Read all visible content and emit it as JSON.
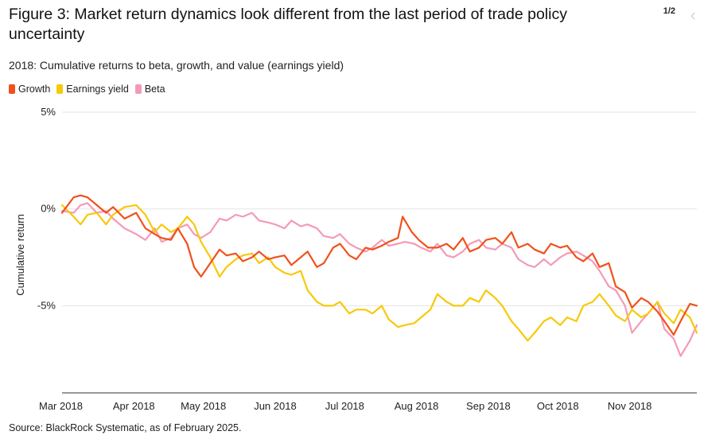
{
  "header": {
    "title": "Figure 3: Market return dynamics look different from the last period of trade policy uncertainty",
    "pager": "1/2",
    "prev_icon": "chevron-left-icon"
  },
  "footer": {
    "source": "Source: BlackRock Systematic, as of February 2025."
  },
  "colors": {
    "Growth": "#f0511c",
    "Earnings yield": "#f7c90a",
    "Beta": "#f49ab7",
    "grid": "#e6e6e6"
  },
  "chart_data": {
    "type": "line",
    "title": "2018: Cumulative returns to beta, growth, and value (earnings yield)",
    "xlabel": "",
    "ylabel": "Cumulative return",
    "ylim": [
      -9.5,
      5
    ],
    "yticks": [
      5,
      0,
      -5
    ],
    "ytick_labels": [
      "5%",
      "0%",
      "-5%"
    ],
    "xticks": [
      "Mar 2018",
      "Apr 2018",
      "May 2018",
      "Jun 2018",
      "Jul 2018",
      "Aug 2018",
      "Sep 2018",
      "Oct 2018",
      "Nov 2018"
    ],
    "xlim": [
      "2018-03-01",
      "2018-11-30"
    ],
    "grid": true,
    "legend_position": "top-left",
    "series": [
      {
        "name": "Growth",
        "x": [
          "2018-03-01",
          "2018-03-06",
          "2018-03-09",
          "2018-03-12",
          "2018-03-16",
          "2018-03-20",
          "2018-03-23",
          "2018-03-28",
          "2018-04-02",
          "2018-04-06",
          "2018-04-10",
          "2018-04-13",
          "2018-04-17",
          "2018-04-20",
          "2018-04-24",
          "2018-04-27",
          "2018-04-30",
          "2018-05-04",
          "2018-05-08",
          "2018-05-11",
          "2018-05-15",
          "2018-05-18",
          "2018-05-22",
          "2018-05-25",
          "2018-05-29",
          "2018-06-01",
          "2018-06-05",
          "2018-06-08",
          "2018-06-12",
          "2018-06-15",
          "2018-06-19",
          "2018-06-22",
          "2018-06-26",
          "2018-06-29",
          "2018-07-03",
          "2018-07-06",
          "2018-07-10",
          "2018-07-13",
          "2018-07-17",
          "2018-07-20",
          "2018-07-24",
          "2018-07-26",
          "2018-07-30",
          "2018-08-02",
          "2018-08-06",
          "2018-08-10",
          "2018-08-14",
          "2018-08-17",
          "2018-08-21",
          "2018-08-24",
          "2018-08-28",
          "2018-08-31",
          "2018-09-04",
          "2018-09-07",
          "2018-09-11",
          "2018-09-14",
          "2018-09-18",
          "2018-09-21",
          "2018-09-25",
          "2018-09-28",
          "2018-10-02",
          "2018-10-05",
          "2018-10-09",
          "2018-10-12",
          "2018-10-16",
          "2018-10-19",
          "2018-10-23",
          "2018-10-26",
          "2018-10-30",
          "2018-11-02",
          "2018-11-06",
          "2018-11-09",
          "2018-11-13",
          "2018-11-16",
          "2018-11-20",
          "2018-11-23",
          "2018-11-27",
          "2018-11-30"
        ],
        "values": [
          -0.2,
          0.6,
          0.7,
          0.6,
          0.2,
          -0.2,
          0.1,
          -0.5,
          -0.2,
          -1.0,
          -1.3,
          -1.5,
          -1.6,
          -1.0,
          -1.8,
          -3.0,
          -3.5,
          -2.8,
          -2.1,
          -2.4,
          -2.3,
          -2.7,
          -2.5,
          -2.2,
          -2.6,
          -2.5,
          -2.4,
          -2.9,
          -2.5,
          -2.2,
          -3.0,
          -2.8,
          -2.0,
          -1.8,
          -2.4,
          -2.6,
          -2.0,
          -2.1,
          -1.9,
          -1.7,
          -1.5,
          -0.4,
          -1.2,
          -1.6,
          -2.0,
          -2.0,
          -1.8,
          -2.1,
          -1.5,
          -2.2,
          -2.0,
          -1.6,
          -1.5,
          -1.8,
          -1.2,
          -2.0,
          -1.8,
          -2.1,
          -2.3,
          -1.8,
          -2.0,
          -1.9,
          -2.5,
          -2.7,
          -2.3,
          -3.0,
          -2.8,
          -4.0,
          -4.3,
          -5.1,
          -4.6,
          -4.8,
          -5.3,
          -5.8,
          -6.5,
          -5.8,
          -4.9,
          -5.0
        ]
      },
      {
        "name": "Earnings yield",
        "x": [
          "2018-03-01",
          "2018-03-06",
          "2018-03-09",
          "2018-03-12",
          "2018-03-16",
          "2018-03-20",
          "2018-03-23",
          "2018-03-28",
          "2018-04-02",
          "2018-04-06",
          "2018-04-10",
          "2018-04-13",
          "2018-04-17",
          "2018-04-20",
          "2018-04-24",
          "2018-04-27",
          "2018-04-30",
          "2018-05-04",
          "2018-05-08",
          "2018-05-11",
          "2018-05-15",
          "2018-05-18",
          "2018-05-22",
          "2018-05-25",
          "2018-05-29",
          "2018-06-01",
          "2018-06-05",
          "2018-06-08",
          "2018-06-12",
          "2018-06-15",
          "2018-06-19",
          "2018-06-22",
          "2018-06-26",
          "2018-06-29",
          "2018-07-03",
          "2018-07-06",
          "2018-07-10",
          "2018-07-13",
          "2018-07-17",
          "2018-07-20",
          "2018-07-24",
          "2018-07-27",
          "2018-07-31",
          "2018-08-03",
          "2018-08-07",
          "2018-08-10",
          "2018-08-14",
          "2018-08-17",
          "2018-08-21",
          "2018-08-24",
          "2018-08-28",
          "2018-08-31",
          "2018-09-04",
          "2018-09-07",
          "2018-09-11",
          "2018-09-14",
          "2018-09-18",
          "2018-09-21",
          "2018-09-25",
          "2018-09-28",
          "2018-10-02",
          "2018-10-05",
          "2018-10-09",
          "2018-10-12",
          "2018-10-16",
          "2018-10-19",
          "2018-10-23",
          "2018-10-26",
          "2018-10-30",
          "2018-11-02",
          "2018-11-06",
          "2018-11-09",
          "2018-11-13",
          "2018-11-16",
          "2018-11-20",
          "2018-11-23",
          "2018-11-27",
          "2018-11-30"
        ],
        "values": [
          0.2,
          -0.4,
          -0.8,
          -0.3,
          -0.2,
          -0.8,
          -0.3,
          0.1,
          0.2,
          -0.3,
          -1.2,
          -0.8,
          -1.2,
          -1.0,
          -0.4,
          -0.8,
          -1.7,
          -2.5,
          -3.5,
          -3.0,
          -2.6,
          -2.4,
          -2.3,
          -2.8,
          -2.5,
          -3.0,
          -3.3,
          -3.4,
          -3.2,
          -4.2,
          -4.8,
          -5.0,
          -5.0,
          -4.8,
          -5.4,
          -5.2,
          -5.2,
          -5.4,
          -5.0,
          -5.7,
          -6.1,
          -6.0,
          -5.9,
          -5.6,
          -5.2,
          -4.4,
          -4.8,
          -5.0,
          -5.0,
          -4.6,
          -4.8,
          -4.2,
          -4.6,
          -5.0,
          -5.8,
          -6.2,
          -6.8,
          -6.4,
          -5.8,
          -5.6,
          -6.0,
          -5.6,
          -5.8,
          -5.0,
          -4.8,
          -4.4,
          -5.0,
          -5.5,
          -5.8,
          -5.2,
          -5.6,
          -5.4,
          -4.8,
          -5.4,
          -5.9,
          -5.2,
          -5.6,
          -6.4
        ]
      },
      {
        "name": "Beta",
        "x": [
          "2018-03-01",
          "2018-03-06",
          "2018-03-09",
          "2018-03-12",
          "2018-03-16",
          "2018-03-20",
          "2018-03-23",
          "2018-03-28",
          "2018-04-02",
          "2018-04-06",
          "2018-04-10",
          "2018-04-13",
          "2018-04-17",
          "2018-04-20",
          "2018-04-24",
          "2018-04-27",
          "2018-04-30",
          "2018-05-04",
          "2018-05-08",
          "2018-05-11",
          "2018-05-15",
          "2018-05-18",
          "2018-05-22",
          "2018-05-25",
          "2018-05-29",
          "2018-06-01",
          "2018-06-05",
          "2018-06-08",
          "2018-06-12",
          "2018-06-15",
          "2018-06-19",
          "2018-06-22",
          "2018-06-26",
          "2018-06-29",
          "2018-07-03",
          "2018-07-06",
          "2018-07-10",
          "2018-07-13",
          "2018-07-17",
          "2018-07-20",
          "2018-07-24",
          "2018-07-27",
          "2018-07-31",
          "2018-08-03",
          "2018-08-07",
          "2018-08-10",
          "2018-08-14",
          "2018-08-17",
          "2018-08-21",
          "2018-08-24",
          "2018-08-28",
          "2018-08-31",
          "2018-09-04",
          "2018-09-07",
          "2018-09-11",
          "2018-09-14",
          "2018-09-18",
          "2018-09-21",
          "2018-09-25",
          "2018-09-28",
          "2018-10-02",
          "2018-10-05",
          "2018-10-09",
          "2018-10-12",
          "2018-10-16",
          "2018-10-19",
          "2018-10-23",
          "2018-10-26",
          "2018-10-30",
          "2018-11-02",
          "2018-11-06",
          "2018-11-09",
          "2018-11-13",
          "2018-11-16",
          "2018-11-20",
          "2018-11-23",
          "2018-11-27",
          "2018-11-30"
        ],
        "values": [
          -0.1,
          -0.2,
          0.2,
          0.3,
          -0.2,
          -0.1,
          -0.5,
          -1.0,
          -1.3,
          -1.6,
          -1.0,
          -1.7,
          -1.5,
          -1.0,
          -0.8,
          -1.3,
          -1.5,
          -1.2,
          -0.5,
          -0.6,
          -0.3,
          -0.4,
          -0.2,
          -0.6,
          -0.7,
          -0.8,
          -1.0,
          -0.6,
          -0.9,
          -0.8,
          -1.0,
          -1.4,
          -1.5,
          -1.3,
          -1.8,
          -2.0,
          -2.2,
          -2.0,
          -1.6,
          -1.9,
          -1.8,
          -1.7,
          -1.8,
          -2.0,
          -2.2,
          -1.8,
          -2.4,
          -2.5,
          -2.2,
          -1.8,
          -1.6,
          -2.0,
          -2.1,
          -1.8,
          -2.0,
          -2.6,
          -2.9,
          -3.0,
          -2.6,
          -2.9,
          -2.5,
          -2.3,
          -2.2,
          -2.4,
          -2.7,
          -3.2,
          -4.0,
          -4.2,
          -5.0,
          -6.4,
          -5.8,
          -5.4,
          -4.8,
          -6.2,
          -6.7,
          -7.6,
          -6.8,
          -6.0
        ]
      }
    ]
  }
}
